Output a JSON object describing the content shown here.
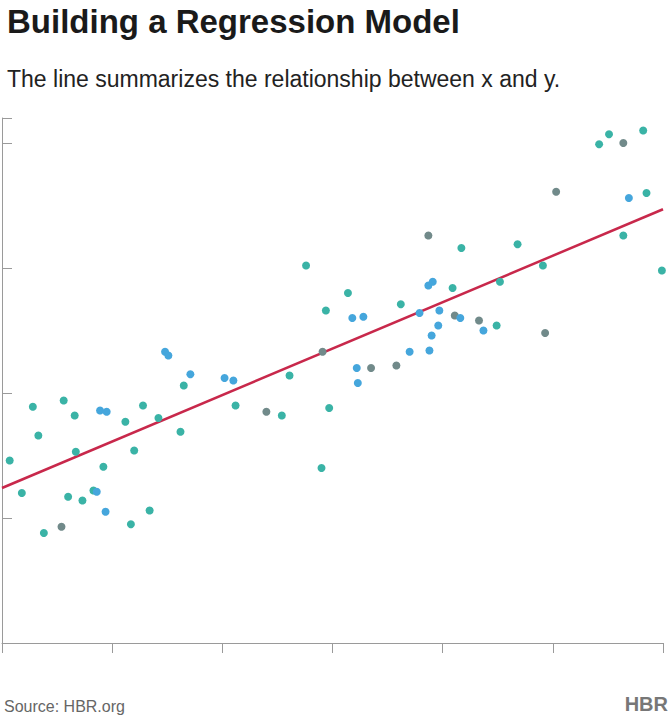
{
  "chart_data": {
    "type": "scatter",
    "title": "Building a Regression Model",
    "subtitle": "The line summarizes the relationship between x and y.",
    "source": "Source: HBR.org",
    "brand": "HBR",
    "x": [
      0.07,
      0.18,
      0.28,
      0.33,
      0.38,
      0.54,
      0.56,
      0.6,
      0.66,
      0.67,
      0.73,
      0.83,
      0.86,
      0.89,
      0.92,
      0.94,
      0.95,
      1.12,
      1.17,
      1.2,
      1.28,
      1.34,
      1.42,
      1.48,
      1.51,
      1.62,
      1.65,
      1.71,
      2.02,
      2.1,
      2.12,
      2.4,
      2.54,
      2.61,
      2.76,
      2.9,
      2.91,
      2.94,
      2.97,
      3.14,
      3.18,
      3.22,
      3.23,
      3.28,
      3.35,
      3.58,
      3.62,
      3.7,
      3.79,
      3.87,
      3.87,
      3.88,
      3.9,
      3.91,
      3.96,
      3.97,
      4.09,
      4.11,
      4.16,
      4.17,
      4.33,
      4.37,
      4.49,
      4.52,
      4.68,
      4.91,
      4.93,
      5.03,
      5.42,
      5.51,
      5.64,
      5.64,
      5.69,
      5.82,
      5.85,
      5.99
    ],
    "values": [
      1.46,
      1.2,
      1.89,
      1.66,
      0.88,
      0.93,
      1.94,
      1.17,
      1.82,
      1.53,
      1.14,
      1.22,
      1.21,
      1.86,
      1.41,
      1.05,
      1.85,
      1.77,
      0.95,
      1.54,
      1.9,
      1.06,
      1.8,
      2.33,
      2.3,
      1.69,
      2.06,
      2.15,
      2.12,
      2.1,
      1.9,
      1.85,
      1.82,
      2.14,
      3.02,
      1.4,
      2.33,
      2.66,
      1.88,
      2.8,
      2.6,
      2.2,
      2.08,
      2.61,
      2.2,
      2.22,
      2.71,
      2.33,
      2.64,
      3.26,
      2.86,
      2.34,
      2.46,
      2.89,
      2.54,
      2.66,
      2.84,
      2.62,
      2.6,
      3.16,
      2.58,
      2.5,
      2.54,
      2.89,
      3.19,
      3.02,
      2.48,
      3.61,
      3.99,
      4.07,
      4.0,
      3.26,
      3.56,
      4.1,
      3.6,
      2.98
    ],
    "colors": [
      "#3ab3a6",
      "#3ab3a6",
      "#3ab3a6",
      "#3ab3a6",
      "#3ab3a6",
      "#718a8a",
      "#3ab3a6",
      "#3ab3a6",
      "#3ab3a6",
      "#3ab3a6",
      "#3ab3a6",
      "#3ab3a6",
      "#45a6dc",
      "#45a6dc",
      "#3ab3a6",
      "#45a6dc",
      "#45a6dc",
      "#3ab3a6",
      "#3ab3a6",
      "#3ab3a6",
      "#3ab3a6",
      "#3ab3a6",
      "#3ab3a6",
      "#45a6dc",
      "#45a6dc",
      "#3ab3a6",
      "#3ab3a6",
      "#45a6dc",
      "#45a6dc",
      "#45a6dc",
      "#3ab3a6",
      "#718a8a",
      "#3ab3a6",
      "#3ab3a6",
      "#3ab3a6",
      "#3ab3a6",
      "#718a8a",
      "#3ab3a6",
      "#3ab3a6",
      "#3ab3a6",
      "#45a6dc",
      "#45a6dc",
      "#45a6dc",
      "#45a6dc",
      "#718a8a",
      "#718a8a",
      "#3ab3a6",
      "#45a6dc",
      "#45a6dc",
      "#718a8a",
      "#45a6dc",
      "#45a6dc",
      "#45a6dc",
      "#45a6dc",
      "#45a6dc",
      "#45a6dc",
      "#3ab3a6",
      "#718a8a",
      "#45a6dc",
      "#3ab3a6",
      "#718a8a",
      "#45a6dc",
      "#3ab3a6",
      "#3ab3a6",
      "#3ab3a6",
      "#3ab3a6",
      "#718a8a",
      "#718a8a",
      "#3ab3a6",
      "#3ab3a6",
      "#718a8a",
      "#3ab3a6",
      "#45a6dc",
      "#3ab3a6",
      "#3ab3a6",
      "#3ab3a6"
    ],
    "marker": "circle",
    "regression_line": {
      "x": [
        0,
        6
      ],
      "y": [
        1.24,
        3.47
      ],
      "color": "#c8284b"
    },
    "xlim": [
      0,
      6
    ],
    "xticks": [
      0,
      1,
      2,
      3,
      4,
      5,
      6
    ],
    "ylim": [
      0,
      4.2
    ],
    "yticks": [
      0,
      1,
      2,
      3,
      4
    ],
    "grid": false,
    "tick_labels": false
  }
}
